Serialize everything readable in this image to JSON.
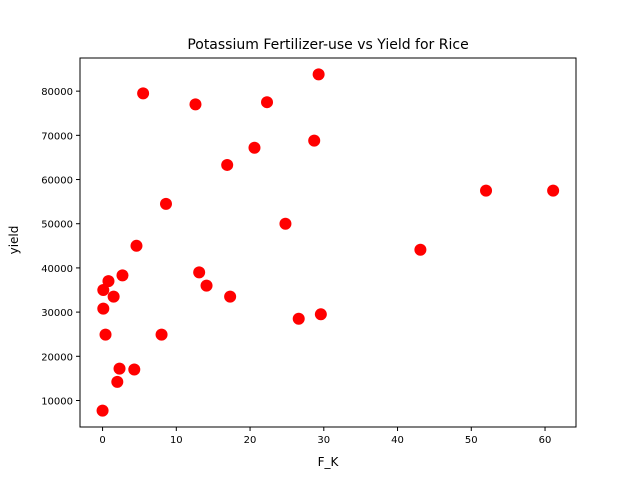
{
  "chart_data": {
    "type": "scatter",
    "title": "Potassium Fertilizer-use vs Yield for Rice",
    "xlabel": "F_K",
    "ylabel": "yield",
    "xlim": [
      -3.06,
      64.2
    ],
    "ylim": [
      4000,
      87500
    ],
    "xticks": [
      0,
      10,
      20,
      30,
      40,
      50,
      60
    ],
    "yticks": [
      10000,
      20000,
      30000,
      40000,
      50000,
      60000,
      70000,
      80000
    ],
    "grid": false,
    "marker_color": "#ff0000",
    "points": [
      {
        "x": 0.0,
        "y": 7700
      },
      {
        "x": 0.1,
        "y": 35000
      },
      {
        "x": 0.1,
        "y": 30800
      },
      {
        "x": 0.4,
        "y": 24900
      },
      {
        "x": 0.8,
        "y": 37000
      },
      {
        "x": 1.5,
        "y": 33500
      },
      {
        "x": 2.0,
        "y": 14200
      },
      {
        "x": 2.3,
        "y": 17200
      },
      {
        "x": 2.7,
        "y": 38300
      },
      {
        "x": 4.3,
        "y": 17000
      },
      {
        "x": 4.6,
        "y": 45000
      },
      {
        "x": 5.5,
        "y": 79500
      },
      {
        "x": 8.0,
        "y": 24900
      },
      {
        "x": 8.6,
        "y": 54500
      },
      {
        "x": 12.6,
        "y": 77000
      },
      {
        "x": 13.1,
        "y": 39000
      },
      {
        "x": 14.1,
        "y": 36000
      },
      {
        "x": 16.9,
        "y": 63300
      },
      {
        "x": 17.3,
        "y": 33500
      },
      {
        "x": 20.6,
        "y": 67200
      },
      {
        "x": 22.3,
        "y": 77500
      },
      {
        "x": 24.8,
        "y": 50000
      },
      {
        "x": 26.6,
        "y": 28500
      },
      {
        "x": 28.7,
        "y": 68800
      },
      {
        "x": 29.3,
        "y": 83800
      },
      {
        "x": 29.6,
        "y": 29500
      },
      {
        "x": 43.1,
        "y": 44100
      },
      {
        "x": 52.0,
        "y": 57500
      },
      {
        "x": 61.1,
        "y": 57500
      }
    ]
  }
}
